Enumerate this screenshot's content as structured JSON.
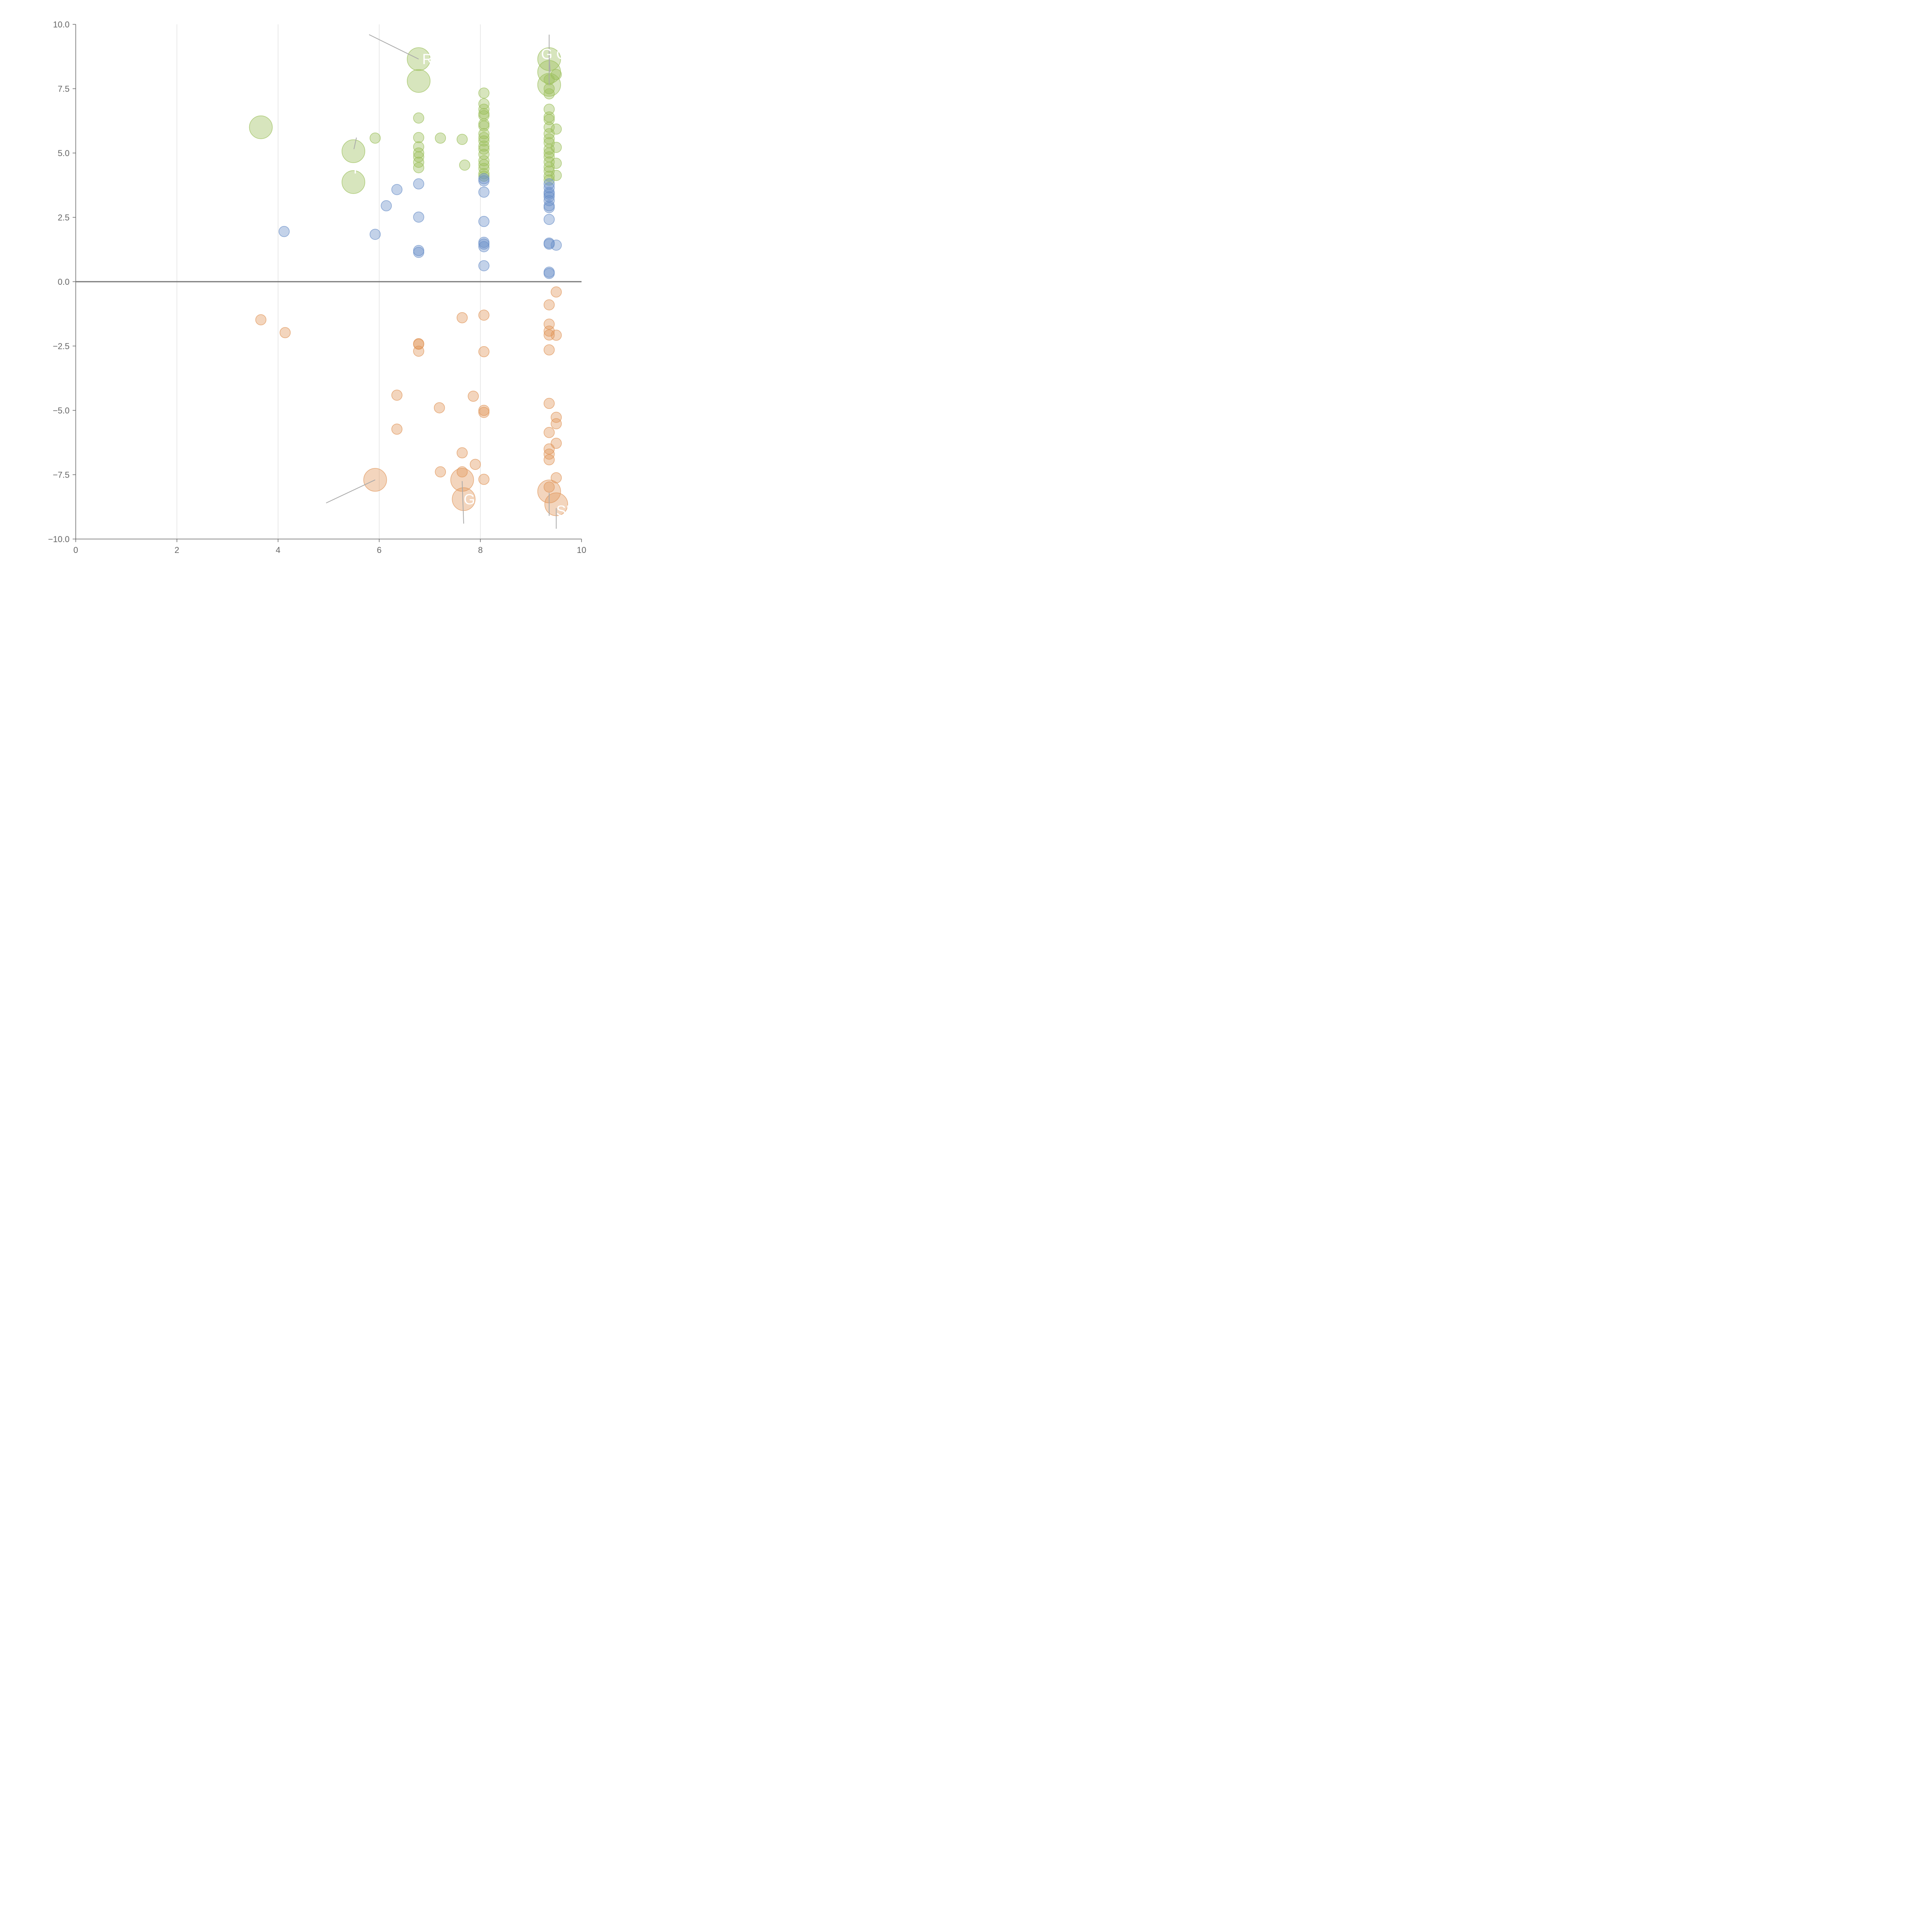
{
  "chart_data": {
    "type": "scatter",
    "title": "",
    "xlabel": "",
    "ylabel": "",
    "xlim": [
      0,
      10
    ],
    "ylim": [
      -10,
      10
    ],
    "x_ticks": [
      "0",
      "2",
      "4",
      "6",
      "8",
      "10"
    ],
    "y_ticks": [
      "−10.0",
      "−7.5",
      "−5.0",
      "−2.5",
      "0.0",
      "2.5",
      "5.0",
      "7.5",
      "10.0"
    ],
    "grid": "vertical",
    "zero_line": true,
    "colors": {
      "green": "#9bbf5a",
      "blue": "#6a8fc8",
      "orange": "#e0955a",
      "axis": "#666666",
      "zero_line": "#777777",
      "grid": "#dcdcdc"
    },
    "series": [
      {
        "color": "#9bbf5a",
        "points": [
          {
            "x": 3.66,
            "y": 6.0,
            "r": 2.2
          },
          {
            "x": 5.49,
            "y": 5.07,
            "r": 2.2
          },
          {
            "x": 5.49,
            "y": 3.87,
            "r": 2.2
          },
          {
            "x": 5.92,
            "y": 5.58,
            "r": 1
          },
          {
            "x": 6.78,
            "y": 8.65,
            "r": 2.2
          },
          {
            "x": 6.78,
            "y": 7.8,
            "r": 2.2
          },
          {
            "x": 6.78,
            "y": 6.36,
            "r": 1
          },
          {
            "x": 6.78,
            "y": 5.6,
            "r": 1
          },
          {
            "x": 6.78,
            "y": 5.24,
            "r": 1
          },
          {
            "x": 6.78,
            "y": 5.0,
            "r": 1
          },
          {
            "x": 6.78,
            "y": 4.85,
            "r": 1
          },
          {
            "x": 6.78,
            "y": 4.64,
            "r": 1
          },
          {
            "x": 6.78,
            "y": 4.43,
            "r": 1
          },
          {
            "x": 7.21,
            "y": 5.58,
            "r": 1
          },
          {
            "x": 7.64,
            "y": 5.53,
            "r": 1
          },
          {
            "x": 7.69,
            "y": 4.53,
            "r": 1
          },
          {
            "x": 8.07,
            "y": 7.33,
            "r": 1
          },
          {
            "x": 8.07,
            "y": 6.91,
            "r": 1
          },
          {
            "x": 8.07,
            "y": 6.7,
            "r": 1
          },
          {
            "x": 8.07,
            "y": 6.53,
            "r": 1
          },
          {
            "x": 8.07,
            "y": 6.45,
            "r": 1
          },
          {
            "x": 8.07,
            "y": 6.13,
            "r": 1
          },
          {
            "x": 8.07,
            "y": 6.05,
            "r": 1
          },
          {
            "x": 8.07,
            "y": 5.75,
            "r": 1
          },
          {
            "x": 8.07,
            "y": 5.6,
            "r": 1
          },
          {
            "x": 8.07,
            "y": 5.47,
            "r": 1
          },
          {
            "x": 8.07,
            "y": 5.27,
            "r": 1
          },
          {
            "x": 8.07,
            "y": 5.15,
            "r": 1
          },
          {
            "x": 8.07,
            "y": 4.95,
            "r": 1
          },
          {
            "x": 8.07,
            "y": 4.7,
            "r": 1
          },
          {
            "x": 8.07,
            "y": 4.55,
            "r": 1
          },
          {
            "x": 8.07,
            "y": 4.4,
            "r": 1
          },
          {
            "x": 8.07,
            "y": 4.2,
            "r": 1
          },
          {
            "x": 8.07,
            "y": 4.1,
            "r": 1
          },
          {
            "x": 9.36,
            "y": 8.65,
            "r": 2.2
          },
          {
            "x": 9.36,
            "y": 8.15,
            "r": 2.2
          },
          {
            "x": 9.36,
            "y": 7.65,
            "r": 2.2
          },
          {
            "x": 9.36,
            "y": 7.85,
            "r": 1
          },
          {
            "x": 9.36,
            "y": 7.5,
            "r": 1
          },
          {
            "x": 9.36,
            "y": 7.3,
            "r": 1
          },
          {
            "x": 9.5,
            "y": 8.05,
            "r": 1
          },
          {
            "x": 9.36,
            "y": 6.7,
            "r": 1
          },
          {
            "x": 9.36,
            "y": 6.4,
            "r": 1
          },
          {
            "x": 9.36,
            "y": 6.3,
            "r": 1
          },
          {
            "x": 9.36,
            "y": 6.0,
            "r": 1
          },
          {
            "x": 9.5,
            "y": 5.93,
            "r": 1
          },
          {
            "x": 9.36,
            "y": 5.75,
            "r": 1
          },
          {
            "x": 9.36,
            "y": 5.55,
            "r": 1
          },
          {
            "x": 9.36,
            "y": 5.4,
            "r": 1
          },
          {
            "x": 9.5,
            "y": 5.22,
            "r": 1
          },
          {
            "x": 9.36,
            "y": 5.15,
            "r": 1
          },
          {
            "x": 9.36,
            "y": 5.0,
            "r": 1
          },
          {
            "x": 9.36,
            "y": 4.85,
            "r": 1
          },
          {
            "x": 9.36,
            "y": 4.65,
            "r": 1
          },
          {
            "x": 9.5,
            "y": 4.6,
            "r": 1
          },
          {
            "x": 9.36,
            "y": 4.45,
            "r": 1
          },
          {
            "x": 9.36,
            "y": 4.3,
            "r": 1
          },
          {
            "x": 9.36,
            "y": 4.1,
            "r": 1
          },
          {
            "x": 9.5,
            "y": 4.13,
            "r": 1
          },
          {
            "x": 9.36,
            "y": 3.95,
            "r": 1
          }
        ]
      },
      {
        "color": "#6a8fc8",
        "points": [
          {
            "x": 4.12,
            "y": 1.95,
            "r": 1
          },
          {
            "x": 5.92,
            "y": 1.84,
            "r": 1
          },
          {
            "x": 6.14,
            "y": 2.95,
            "r": 1
          },
          {
            "x": 6.35,
            "y": 3.58,
            "r": 1
          },
          {
            "x": 6.78,
            "y": 3.8,
            "r": 1
          },
          {
            "x": 6.78,
            "y": 2.51,
            "r": 1
          },
          {
            "x": 6.78,
            "y": 1.21,
            "r": 1
          },
          {
            "x": 6.78,
            "y": 1.14,
            "r": 1
          },
          {
            "x": 8.07,
            "y": 4.0,
            "r": 1
          },
          {
            "x": 8.07,
            "y": 3.92,
            "r": 1
          },
          {
            "x": 8.07,
            "y": 3.48,
            "r": 1
          },
          {
            "x": 8.07,
            "y": 2.34,
            "r": 1
          },
          {
            "x": 8.07,
            "y": 1.53,
            "r": 1
          },
          {
            "x": 8.07,
            "y": 1.46,
            "r": 1
          },
          {
            "x": 8.07,
            "y": 1.36,
            "r": 1
          },
          {
            "x": 8.07,
            "y": 0.62,
            "r": 1
          },
          {
            "x": 9.36,
            "y": 3.8,
            "r": 1
          },
          {
            "x": 9.36,
            "y": 3.65,
            "r": 1
          },
          {
            "x": 9.36,
            "y": 3.47,
            "r": 1
          },
          {
            "x": 9.36,
            "y": 3.4,
            "r": 1
          },
          {
            "x": 9.36,
            "y": 3.3,
            "r": 1
          },
          {
            "x": 9.36,
            "y": 3.15,
            "r": 1
          },
          {
            "x": 9.36,
            "y": 2.95,
            "r": 1
          },
          {
            "x": 9.36,
            "y": 2.88,
            "r": 1
          },
          {
            "x": 9.36,
            "y": 2.42,
            "r": 1
          },
          {
            "x": 9.36,
            "y": 1.5,
            "r": 1
          },
          {
            "x": 9.36,
            "y": 1.46,
            "r": 1
          },
          {
            "x": 9.5,
            "y": 1.42,
            "r": 1
          },
          {
            "x": 9.36,
            "y": 0.37,
            "r": 1
          },
          {
            "x": 9.36,
            "y": 0.32,
            "r": 1
          }
        ]
      },
      {
        "color": "#e0955a",
        "points": [
          {
            "x": 3.66,
            "y": -1.48,
            "r": 1
          },
          {
            "x": 4.14,
            "y": -1.98,
            "r": 1
          },
          {
            "x": 5.92,
            "y": -7.7,
            "r": 2.2
          },
          {
            "x": 6.35,
            "y": -4.41,
            "r": 1
          },
          {
            "x": 6.35,
            "y": -5.73,
            "r": 1
          },
          {
            "x": 6.78,
            "y": -2.41,
            "r": 1
          },
          {
            "x": 6.78,
            "y": -2.43,
            "r": 1
          },
          {
            "x": 6.78,
            "y": -2.7,
            "r": 1
          },
          {
            "x": 7.19,
            "y": -4.9,
            "r": 1
          },
          {
            "x": 7.21,
            "y": -7.39,
            "r": 1
          },
          {
            "x": 7.64,
            "y": -1.4,
            "r": 1
          },
          {
            "x": 7.64,
            "y": -6.65,
            "r": 1
          },
          {
            "x": 7.64,
            "y": -7.39,
            "r": 1
          },
          {
            "x": 7.64,
            "y": -7.7,
            "r": 2.2
          },
          {
            "x": 7.67,
            "y": -8.45,
            "r": 2.2
          },
          {
            "x": 7.86,
            "y": -4.45,
            "r": 1
          },
          {
            "x": 7.9,
            "y": -7.1,
            "r": 1
          },
          {
            "x": 8.07,
            "y": -1.3,
            "r": 1
          },
          {
            "x": 8.07,
            "y": -2.72,
            "r": 1
          },
          {
            "x": 8.07,
            "y": -5.0,
            "r": 1
          },
          {
            "x": 8.07,
            "y": -5.08,
            "r": 1
          },
          {
            "x": 8.07,
            "y": -7.68,
            "r": 1
          },
          {
            "x": 9.5,
            "y": -0.4,
            "r": 1
          },
          {
            "x": 9.36,
            "y": -0.9,
            "r": 1
          },
          {
            "x": 9.36,
            "y": -1.65,
            "r": 1
          },
          {
            "x": 9.36,
            "y": -1.92,
            "r": 1
          },
          {
            "x": 9.36,
            "y": -2.07,
            "r": 1
          },
          {
            "x": 9.5,
            "y": -2.08,
            "r": 1
          },
          {
            "x": 9.36,
            "y": -2.65,
            "r": 1
          },
          {
            "x": 9.36,
            "y": -4.73,
            "r": 1
          },
          {
            "x": 9.5,
            "y": -5.27,
            "r": 1
          },
          {
            "x": 9.5,
            "y": -5.52,
            "r": 1
          },
          {
            "x": 9.36,
            "y": -5.86,
            "r": 1
          },
          {
            "x": 9.5,
            "y": -6.28,
            "r": 1
          },
          {
            "x": 9.36,
            "y": -6.5,
            "r": 1
          },
          {
            "x": 9.36,
            "y": -6.7,
            "r": 1
          },
          {
            "x": 9.36,
            "y": -6.92,
            "r": 1
          },
          {
            "x": 9.5,
            "y": -7.62,
            "r": 1
          },
          {
            "x": 9.36,
            "y": -7.98,
            "r": 1
          },
          {
            "x": 9.36,
            "y": -8.15,
            "r": 2.2
          },
          {
            "x": 9.5,
            "y": -8.65,
            "r": 2.2
          }
        ]
      }
    ],
    "annotations": [
      {
        "text": "R",
        "x": 6.85,
        "y": 8.65,
        "lx1": 5.8,
        "ly1": 9.6,
        "lx2": 6.78,
        "ly2": 8.65
      },
      {
        "text": "G",
        "x": 9.2,
        "y": 8.85,
        "lx1": 9.36,
        "ly1": 9.6,
        "lx2": 9.36,
        "ly2": 7.65
      },
      {
        "text": "G",
        "x": 9.5,
        "y": 8.85,
        "lx1": 9.38,
        "ly1": 8.15,
        "lx2": 9.36,
        "ly2": 8.75
      },
      {
        "text": "PX",
        "x": 5.49,
        "y": 4.4,
        "lx1": 5.5,
        "ly1": 5.15,
        "lx2": 5.55,
        "ly2": 5.6
      },
      {
        "text": "G",
        "x": 7.67,
        "y": -8.45,
        "lx1": 7.64,
        "ly1": -7.75,
        "lx2": 7.67,
        "ly2": -9.4
      },
      {
        "text": "SK",
        "x": 9.5,
        "y": -8.9,
        "lx1": 9.36,
        "ly1": -8.2,
        "lx2": 9.36,
        "ly2": -9.1
      },
      {
        "text": "",
        "x": 9.5,
        "y": -8.9,
        "lx1": 9.5,
        "ly1": -8.8,
        "lx2": 9.5,
        "ly2": -9.6
      },
      {
        "text": "",
        "x": 4.95,
        "y": -8.6,
        "lx1": 4.95,
        "ly1": -8.6,
        "lx2": 5.92,
        "ly2": -7.7
      }
    ]
  }
}
